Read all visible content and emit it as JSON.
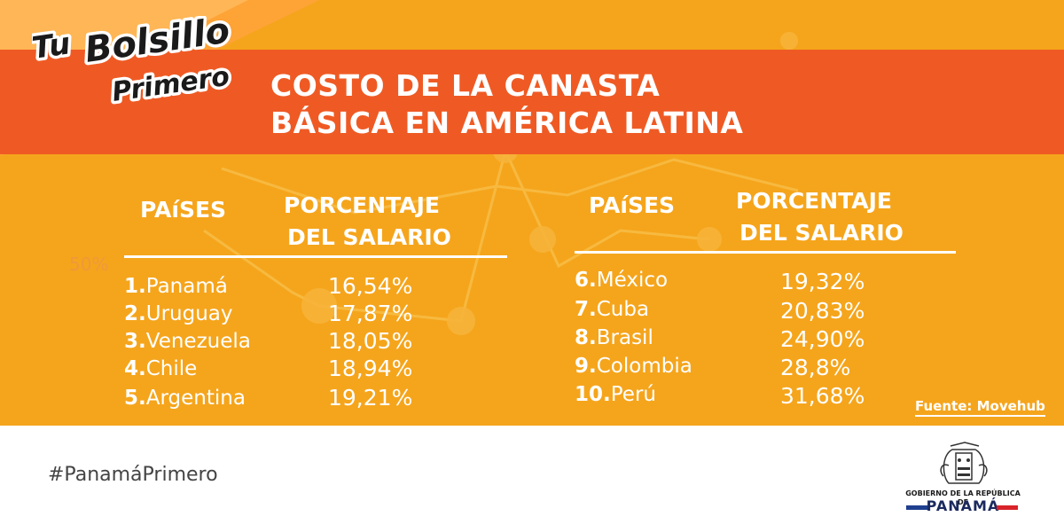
{
  "brand": {
    "line1": "Tu",
    "line2": "Bolsillo",
    "line3": "Primero"
  },
  "title": {
    "line1": "COSTO DE LA CANASTA",
    "line2": "BÁSICA EN AMÉRICA LATINA"
  },
  "background_label": "50%",
  "headers": {
    "country": "PAíSES",
    "percentage_line1": "PORCENTAJE",
    "percentage_line2": "DEL SALARIO"
  },
  "left_table": [
    {
      "rank": "1.",
      "country": "Panamá",
      "percentage": "16,54%"
    },
    {
      "rank": "2.",
      "country": "Uruguay",
      "percentage": "17,87%"
    },
    {
      "rank": "3.",
      "country": "Venezuela",
      "percentage": "18,05%"
    },
    {
      "rank": "4.",
      "country": "Chile",
      "percentage": "18,94%"
    },
    {
      "rank": "5.",
      "country": "Argentina",
      "percentage": "19,21%"
    }
  ],
  "right_table": [
    {
      "rank": "6.",
      "country": "México",
      "percentage": "19,32%"
    },
    {
      "rank": "7.",
      "country": "Cuba",
      "percentage": "20,83%"
    },
    {
      "rank": "8.",
      "country": "Brasil",
      "percentage": "24,90%"
    },
    {
      "rank": "9.",
      "country": "Colombia",
      "percentage": "28,8%"
    },
    {
      "rank": "10.",
      "country": "Perú",
      "percentage": "31,68%"
    }
  ],
  "source": "Fuente: Movehub",
  "hashtag": "#PanamáPrimero",
  "government": {
    "line1": "GOBIERNO DE LA REPÚBLICA DE",
    "line2": "PANAMÁ"
  },
  "colors": {
    "panel": "#f5a51c",
    "banner": "#ef5a24",
    "text": "#ffffff"
  }
}
